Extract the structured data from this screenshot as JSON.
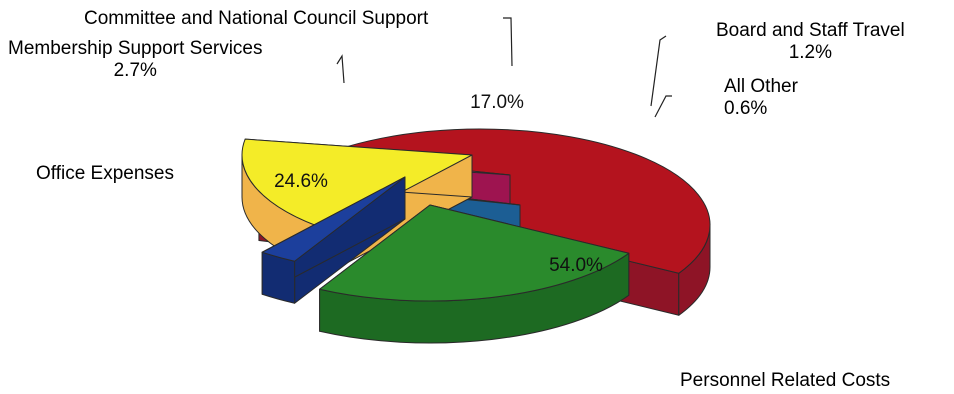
{
  "chart_data": {
    "type": "pie",
    "style": "3d-exploded",
    "title": "",
    "slices": [
      {
        "label": "Personnel Related Costs",
        "value": 54.0,
        "value_label": "54.0%",
        "color": "#b4131e",
        "side_color": "#8e1426"
      },
      {
        "label": "Office Expenses",
        "value": 24.6,
        "value_label": "24.6%",
        "color": "#2a8a2c",
        "side_color": "#1d6a22"
      },
      {
        "label": "Membership Support Services",
        "value": 2.7,
        "value_label": "2.7%",
        "color": "#1c3f9c",
        "side_color": "#122c72"
      },
      {
        "label": "Committee and National Council Support",
        "value": 17.0,
        "value_label": "17.0%",
        "color": "#f4ec28",
        "side_color": "#f0b44a"
      },
      {
        "label": "Board and Staff Travel",
        "value": 1.2,
        "value_label": "1.2%",
        "color": "#d81b6a",
        "side_color": "#9e1450"
      },
      {
        "label": "All Other",
        "value": 0.6,
        "value_label": "0.6%",
        "color": "#2a86c8",
        "side_color": "#1c5e94"
      }
    ]
  }
}
